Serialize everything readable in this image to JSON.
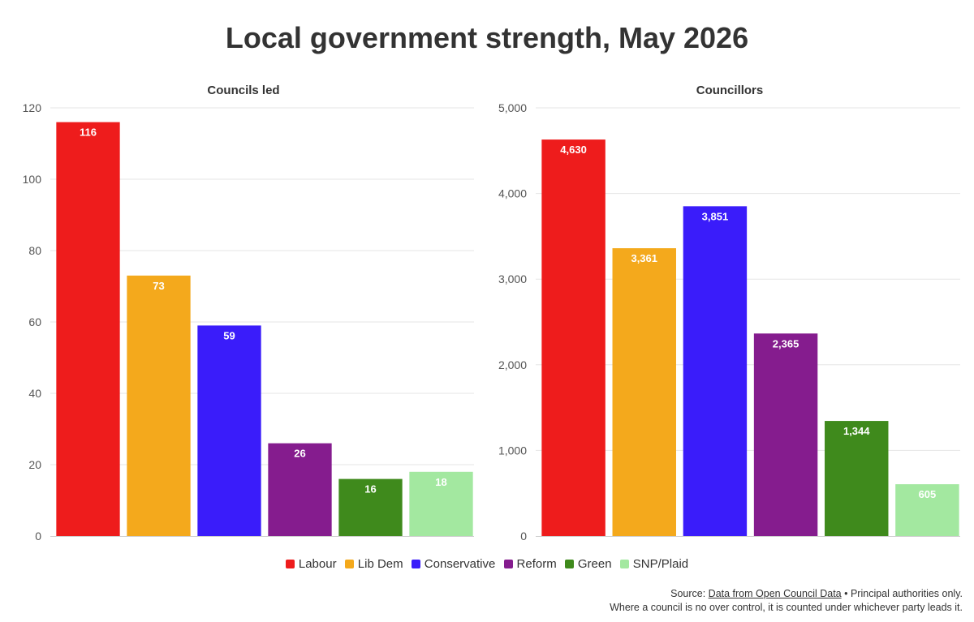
{
  "title": "Local government strength, May 2026",
  "chart_data": [
    {
      "type": "bar",
      "title": "Councils led",
      "categories": [
        "Labour",
        "Lib Dem",
        "Conservative",
        "Reform",
        "Green",
        "SNP/Plaid"
      ],
      "values": [
        116,
        73,
        59,
        26,
        16,
        18
      ],
      "value_labels": [
        "116",
        "73",
        "59",
        "26",
        "16",
        "18"
      ],
      "ylim": [
        0,
        120
      ],
      "yticks": [
        0,
        20,
        40,
        60,
        80,
        100,
        120
      ],
      "ytick_labels": [
        "0",
        "20",
        "40",
        "60",
        "80",
        "100",
        "120"
      ],
      "grid": true
    },
    {
      "type": "bar",
      "title": "Councillors",
      "categories": [
        "Labour",
        "Lib Dem",
        "Conservative",
        "Reform",
        "Green",
        "SNP/Plaid"
      ],
      "values": [
        4630,
        3361,
        3851,
        2365,
        1344,
        605
      ],
      "value_labels": [
        "4,630",
        "3,361",
        "3,851",
        "2,365",
        "1,344",
        "605"
      ],
      "ylim": [
        0,
        5000
      ],
      "yticks": [
        0,
        1000,
        2000,
        3000,
        4000,
        5000
      ],
      "ytick_labels": [
        "0",
        "1,000",
        "2,000",
        "3,000",
        "4,000",
        "5,000"
      ],
      "grid": true
    }
  ],
  "colors": [
    "#ee1c1c",
    "#f4a91c",
    "#3a1cfa",
    "#851c8e",
    "#3f8a1c",
    "#a3e8a0"
  ],
  "legend": {
    "placement": "bottom-center",
    "items": [
      "Labour",
      "Lib Dem",
      "Conservative",
      "Reform",
      "Green",
      "SNP/Plaid"
    ]
  },
  "source": {
    "prefix": "Source: ",
    "link_text": "Data from Open Council Data",
    "suffix": " • Principal authorities only.",
    "note": "Where a council is no over control, it is counted under whichever party leads it."
  }
}
